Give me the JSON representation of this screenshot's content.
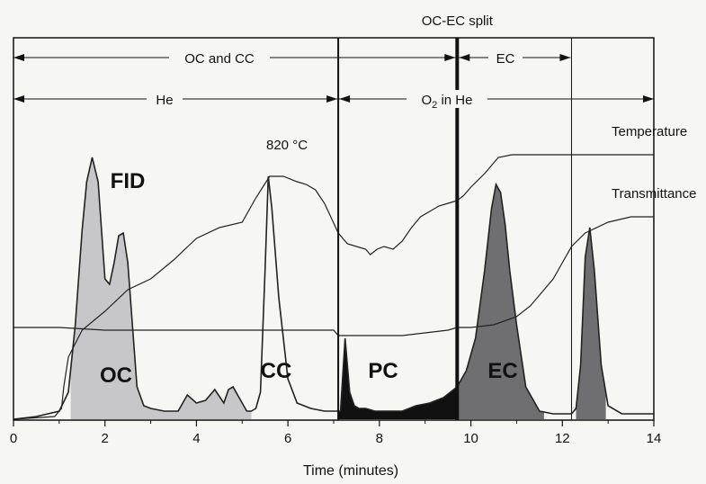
{
  "chart_data": {
    "type": "line",
    "xlabel": "Time (minutes)",
    "xlim": [
      0,
      14
    ],
    "x_ticks": [
      "0",
      "2",
      "4",
      "6",
      "8",
      "10",
      "12",
      "14"
    ],
    "grid": false,
    "annotations": {
      "oc_ec_split": "OC-EC split",
      "oc_and_cc": "OC and CC",
      "ec_range": "EC",
      "he": "He",
      "o2_prefix": "O",
      "o2_sub": "2",
      "o2_suffix": " in He",
      "peak_temp": "820 °C",
      "temperature": "Temperature",
      "transmittance": "Transmittance",
      "fid": "FID",
      "oc": "OC",
      "cc": "CC",
      "pc": "PC",
      "ec": "EC"
    },
    "markers": {
      "oc_cc_end": 7.1,
      "oc_ec_split": 9.7,
      "ec_end": 12.2
    },
    "series": [
      {
        "name": "FID",
        "x": [
          0,
          0.5,
          1.0,
          1.2,
          1.35,
          1.5,
          1.6,
          1.72,
          1.85,
          2.0,
          2.1,
          2.2,
          2.3,
          2.4,
          2.5,
          2.6,
          2.7,
          2.85,
          3.0,
          3.3,
          3.6,
          3.8,
          4.0,
          4.2,
          4.4,
          4.6,
          4.7,
          4.8,
          5.0,
          5.1,
          5.2,
          5.3,
          5.4,
          5.5,
          5.57,
          5.65,
          5.8,
          6.0,
          6.2,
          6.5,
          6.8,
          7.05,
          7.15,
          7.25,
          7.35,
          7.45,
          7.55,
          7.7,
          7.9,
          8.2,
          8.5,
          8.8,
          9.1,
          9.4,
          9.7,
          9.9,
          10.1,
          10.3,
          10.45,
          10.55,
          10.65,
          10.75,
          10.85,
          11.0,
          11.2,
          11.5,
          11.8,
          12.0,
          12.2,
          12.3,
          12.4,
          12.5,
          12.6,
          12.7,
          12.85,
          13.0,
          13.3,
          13.6,
          14.0
        ],
        "values": [
          0.0,
          0.01,
          0.03,
          0.1,
          0.35,
          0.7,
          0.88,
          0.97,
          0.88,
          0.52,
          0.5,
          0.58,
          0.68,
          0.69,
          0.58,
          0.35,
          0.12,
          0.05,
          0.04,
          0.03,
          0.03,
          0.09,
          0.06,
          0.07,
          0.11,
          0.06,
          0.11,
          0.12,
          0.06,
          0.03,
          0.03,
          0.04,
          0.1,
          0.55,
          0.9,
          0.78,
          0.45,
          0.15,
          0.06,
          0.04,
          0.03,
          0.03,
          0.03,
          0.3,
          0.1,
          0.05,
          0.04,
          0.04,
          0.03,
          0.03,
          0.03,
          0.05,
          0.06,
          0.08,
          0.12,
          0.18,
          0.3,
          0.55,
          0.78,
          0.87,
          0.84,
          0.72,
          0.55,
          0.35,
          0.12,
          0.03,
          0.02,
          0.02,
          0.02,
          0.04,
          0.2,
          0.6,
          0.71,
          0.55,
          0.2,
          0.05,
          0.02,
          0.02,
          0.02
        ]
      },
      {
        "name": "Temperature",
        "x": [
          0,
          0.9,
          1.05,
          1.1,
          1.2,
          1.5,
          2.0,
          2.5,
          3.0,
          3.5,
          4.0,
          4.5,
          5.0,
          5.3,
          5.6,
          5.9,
          6.2,
          6.4,
          6.6,
          6.8,
          7.1,
          7.3,
          7.5,
          7.7,
          7.8,
          7.95,
          8.1,
          8.3,
          8.5,
          8.7,
          8.9,
          9.1,
          9.3,
          9.5,
          9.7,
          9.85,
          10.0,
          10.3,
          10.6,
          10.9,
          11.2,
          11.5,
          12.0,
          12.5,
          13.0,
          14.0
        ],
        "values": [
          0.0,
          0.01,
          0.04,
          0.12,
          0.23,
          0.33,
          0.4,
          0.48,
          0.52,
          0.59,
          0.67,
          0.71,
          0.73,
          0.82,
          0.9,
          0.9,
          0.88,
          0.87,
          0.85,
          0.8,
          0.69,
          0.65,
          0.64,
          0.63,
          0.61,
          0.63,
          0.64,
          0.63,
          0.66,
          0.71,
          0.75,
          0.77,
          0.79,
          0.8,
          0.81,
          0.83,
          0.86,
          0.91,
          0.97,
          0.98,
          0.98,
          0.98,
          0.98,
          0.98,
          0.98,
          0.98
        ]
      },
      {
        "name": "Transmittance",
        "x": [
          0,
          1.0,
          2.0,
          3.0,
          4.0,
          5.0,
          6.0,
          7.0,
          7.1,
          7.5,
          8.0,
          8.5,
          9.0,
          9.5,
          9.7,
          10.0,
          10.5,
          11.0,
          11.3,
          11.5,
          11.8,
          12.0,
          12.2,
          12.5,
          13.0,
          13.5,
          14.0
        ],
        "values": [
          0.34,
          0.34,
          0.33,
          0.33,
          0.33,
          0.33,
          0.33,
          0.33,
          0.31,
          0.31,
          0.31,
          0.31,
          0.32,
          0.33,
          0.34,
          0.34,
          0.35,
          0.38,
          0.42,
          0.46,
          0.52,
          0.58,
          0.64,
          0.69,
          0.73,
          0.75,
          0.75
        ]
      }
    ],
    "colors": {
      "oc_fill": "#c7c7c9",
      "pc_fill": "#111111",
      "ec_fill": "#6f6f71",
      "line": "#222222"
    }
  }
}
